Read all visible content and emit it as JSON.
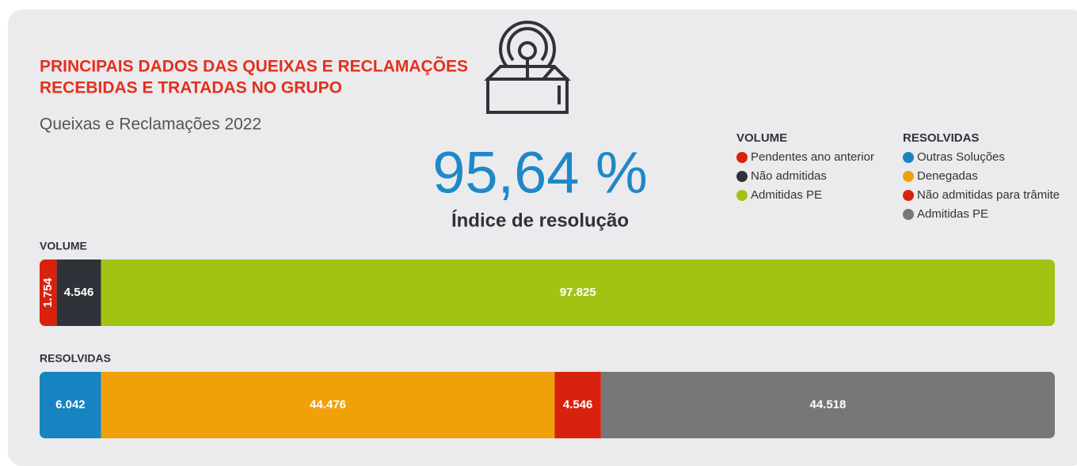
{
  "header": {
    "title_lines": [
      "PRINCIPAIS DADOS DAS QUEIXAS E RECLAMAÇÕES",
      "RECEBIDAS E TRATADAS NO GRUPO"
    ],
    "subtitle": "Queixas e Reclamações  2022"
  },
  "highlight": {
    "value_text": "95,64 %",
    "label": "Índice de resolução"
  },
  "chart_data": [
    {
      "type": "stacked_bar",
      "title": "VOLUME",
      "series": [
        {
          "name": "Pendentes ano anterior",
          "color": "#d9220e",
          "values": [
            1754
          ],
          "value_labels": [
            "1.754"
          ]
        },
        {
          "name": "Não admitidas",
          "color": "#2f3339",
          "values": [
            4546
          ],
          "value_labels": [
            "4.546"
          ]
        },
        {
          "name": "Admitidas PE",
          "color": "#a1c414",
          "values": [
            97825
          ],
          "value_labels": [
            "97.825"
          ]
        }
      ]
    },
    {
      "type": "stacked_bar",
      "title": "RESOLVIDAS",
      "series": [
        {
          "name": "Outras Soluções",
          "color": "#1784c1",
          "values": [
            6042
          ],
          "value_labels": [
            "6.042"
          ]
        },
        {
          "name": "Denegadas",
          "color": "#f0a10a",
          "values": [
            44476
          ],
          "value_labels": [
            "44.476"
          ]
        },
        {
          "name": "Não admitidas para trâmite",
          "color": "#d9220e",
          "values": [
            4546
          ],
          "value_labels": [
            "4.546"
          ]
        },
        {
          "name": "Admitidas PE",
          "color": "#777777",
          "values": [
            44518
          ],
          "value_labels": [
            "44.518"
          ]
        }
      ]
    }
  ]
}
